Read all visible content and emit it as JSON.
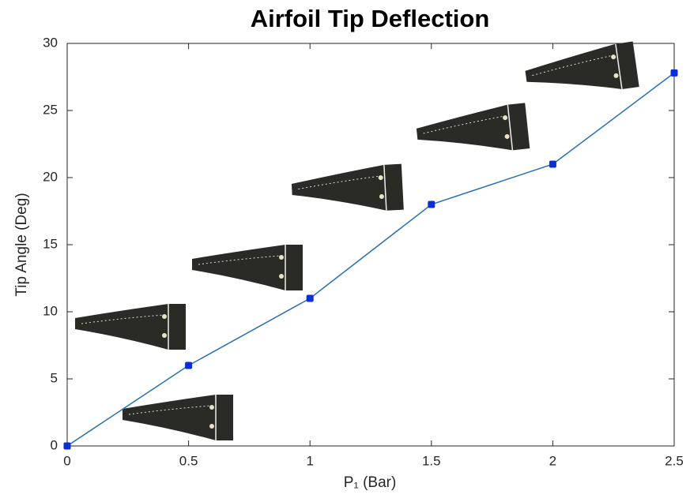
{
  "chart_data": {
    "type": "line",
    "title": "Airfoil Tip Deflection",
    "x_label": "P₁ (Bar)",
    "y_label": "Tip Angle (Deg)",
    "x": [
      0,
      0.5,
      1,
      1.5,
      2,
      2.5
    ],
    "values": [
      0,
      6,
      11,
      18,
      21,
      27.8
    ],
    "color": "#2a6fb5",
    "marker_color": "#0a2fd6",
    "xlim": [
      0,
      2.5
    ],
    "xticks": [
      0,
      0.5,
      1,
      1.5,
      2,
      2.5
    ],
    "ylim": [
      0,
      30
    ],
    "yticks": [
      0,
      5,
      10,
      15,
      20,
      25,
      30
    ]
  }
}
